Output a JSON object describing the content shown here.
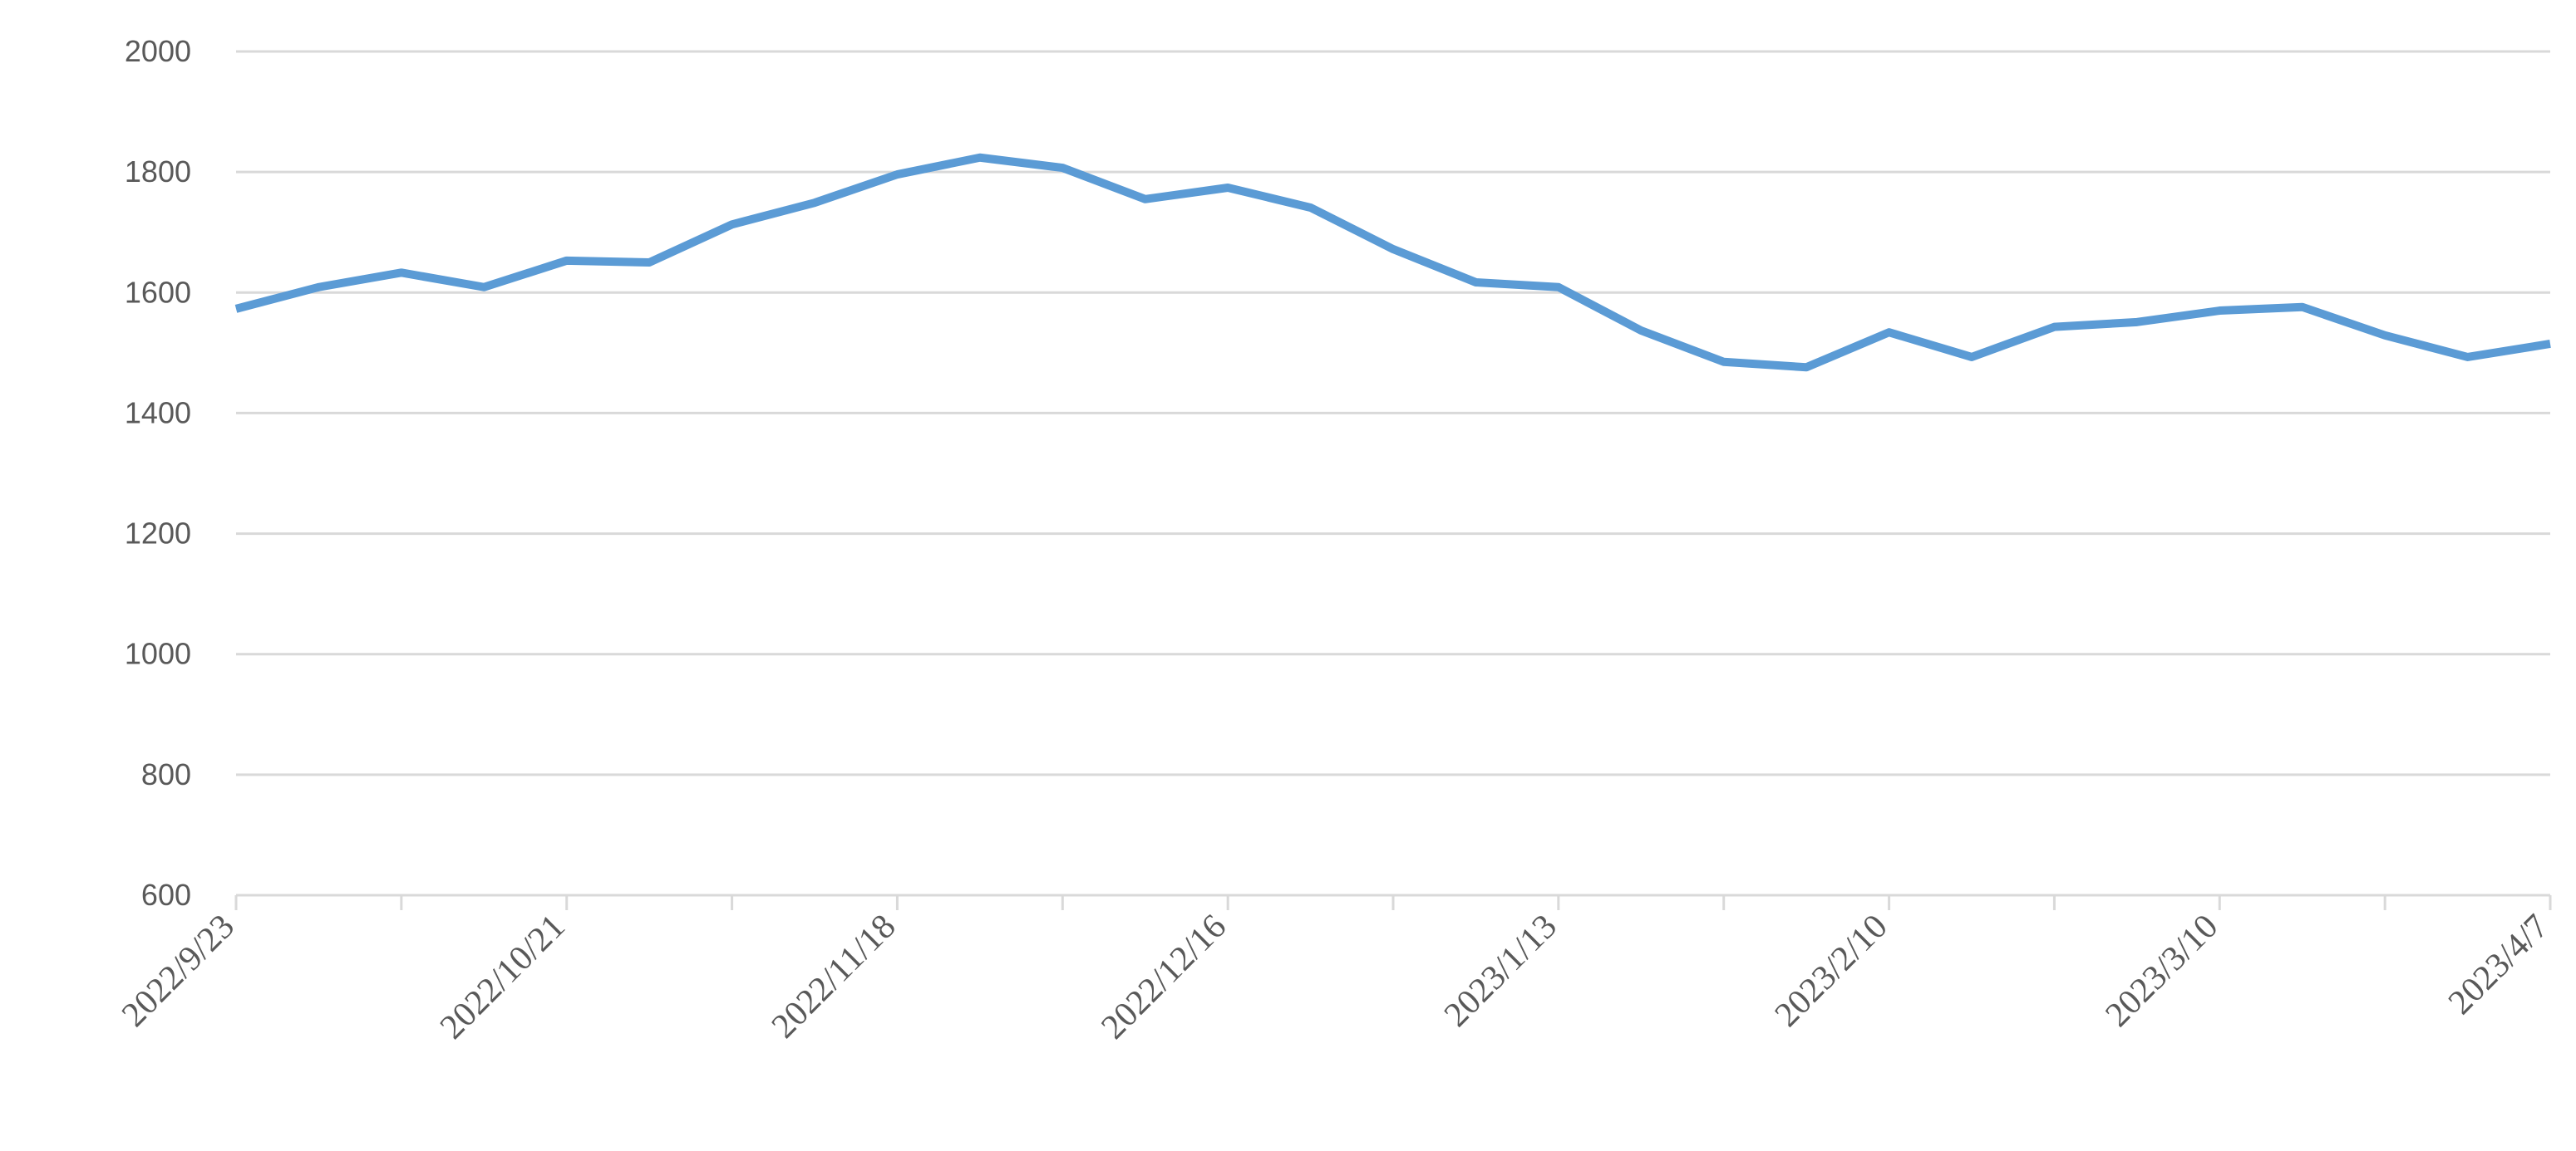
{
  "chart_data": {
    "type": "line",
    "title": "",
    "xlabel": "",
    "ylabel": "",
    "ylim": [
      600,
      2000
    ],
    "yticks": [
      600,
      800,
      1000,
      1200,
      1400,
      1600,
      1800,
      2000
    ],
    "grid": true,
    "legend": "none",
    "line_color": "#5B9BD5",
    "x_tick_labels": [
      "2022/9/23",
      "2022/10/21",
      "2022/11/18",
      "2022/12/16",
      "2023/1/13",
      "2023/2/10",
      "2023/3/10",
      "2023/4/7"
    ],
    "x": [
      "2022/9/23",
      "2022/9/30",
      "2022/10/7",
      "2022/10/14",
      "2022/10/21",
      "2022/10/28",
      "2022/11/4",
      "2022/11/11",
      "2022/11/18",
      "2022/11/25",
      "2022/12/2",
      "2022/12/9",
      "2022/12/16",
      "2022/12/23",
      "2022/12/30",
      "2023/1/6",
      "2023/1/13",
      "2023/1/20",
      "2023/1/27",
      "2023/2/3",
      "2023/2/10",
      "2023/2/17",
      "2023/2/24",
      "2023/3/3",
      "2023/3/10",
      "2023/3/17",
      "2023/3/24",
      "2023/3/31",
      "2023/4/7"
    ],
    "series": [
      {
        "values": [
          1573,
          1609,
          1633,
          1609,
          1653,
          1650,
          1713,
          1749,
          1796,
          1824,
          1807,
          1755,
          1774,
          1741,
          1672,
          1617,
          1609,
          1537,
          1485,
          1476,
          1534,
          1493,
          1543,
          1551,
          1570,
          1576,
          1529,
          1493,
          1515
        ]
      }
    ]
  }
}
